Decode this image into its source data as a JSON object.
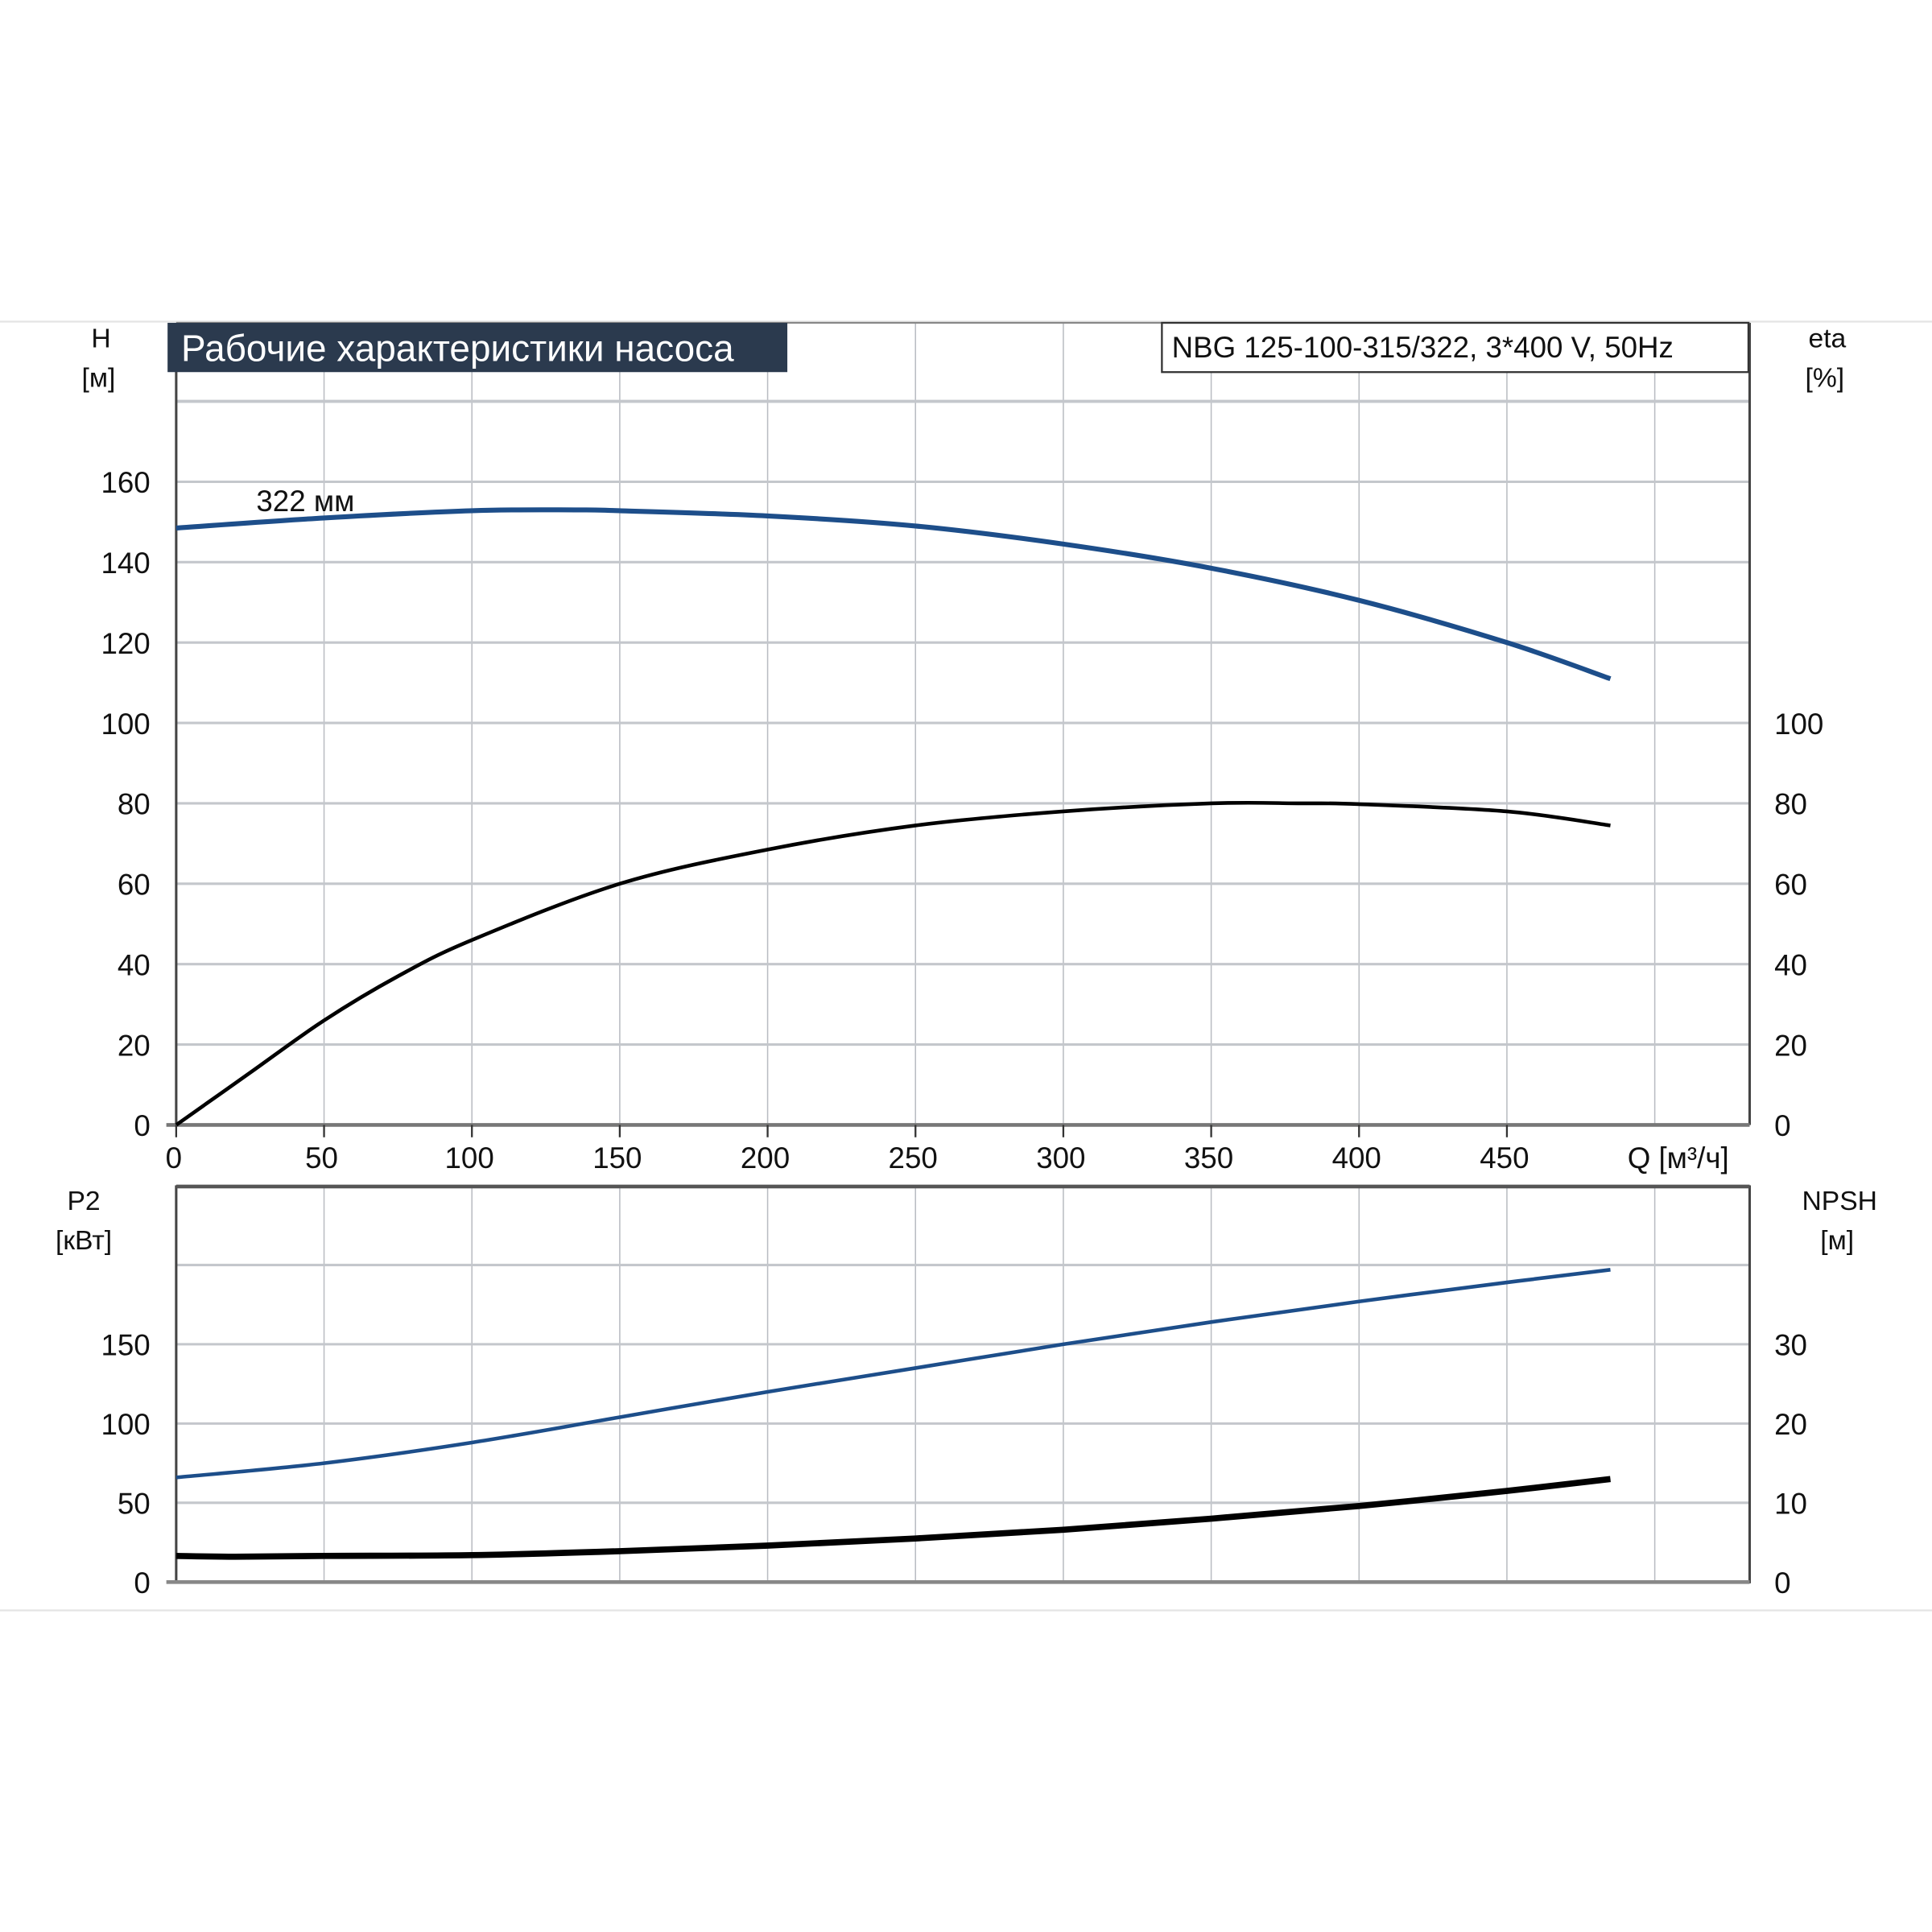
{
  "title": "Рабочие характеристики насоса",
  "model": "NBG 125-100-315/322, 3*400 V, 50Hz",
  "colors": {
    "title_bg": "#2b3a4e",
    "blue": "#1d4e8a",
    "black": "#000000",
    "grid": "#c4c7cc"
  },
  "chart_data": [
    {
      "type": "line",
      "xlabel": "Q [м³/ч]",
      "x_ticks": [
        "0",
        "50",
        "100",
        "150",
        "200",
        "250",
        "300",
        "350",
        "400",
        "450"
      ],
      "xlim": [
        0,
        532
      ],
      "ylabel_left": "H",
      "ylabel_left_unit": "[м]",
      "ylabel_right": "eta",
      "ylabel_right_unit": "[%]",
      "y_left_ticks": [
        "0",
        "20",
        "40",
        "60",
        "80",
        "100",
        "120",
        "140",
        "160"
      ],
      "y_right_ticks": [
        "0",
        "20",
        "40",
        "60",
        "80",
        "100"
      ],
      "ylim": [
        0,
        200
      ],
      "grid": true,
      "annotation": "322 мм",
      "series": [
        {
          "axis": "left",
          "color": "#1d4e8a",
          "x": [
            0,
            50,
            100,
            135,
            150,
            200,
            250,
            300,
            350,
            400,
            450,
            485
          ],
          "y": [
            148.5,
            151,
            152.8,
            153,
            152.8,
            151.5,
            149,
            144.5,
            138.5,
            130.5,
            120,
            111
          ]
        },
        {
          "axis": "right",
          "color": "#000000",
          "x": [
            0,
            25,
            50,
            75,
            100,
            150,
            200,
            250,
            300,
            350,
            380,
            400,
            450,
            485
          ],
          "y": [
            0,
            13,
            26,
            37,
            46,
            60,
            68.5,
            74.5,
            78,
            80,
            80,
            79.8,
            78,
            74.5
          ]
        }
      ]
    },
    {
      "type": "line",
      "xlim": [
        0,
        532
      ],
      "ylabel_left": "P2",
      "ylabel_left_unit": "[кВт]",
      "ylabel_right": "NPSH",
      "ylabel_right_unit": "[м]",
      "y_left_ticks": [
        "0",
        "50",
        "100",
        "150"
      ],
      "y_right_ticks": [
        "0",
        "10",
        "20",
        "30"
      ],
      "ylim_left": [
        0,
        200
      ],
      "ylim_right": [
        0,
        40
      ],
      "grid": true,
      "series": [
        {
          "axis": "left",
          "color": "#1d4e8a",
          "x": [
            0,
            50,
            100,
            150,
            200,
            250,
            300,
            350,
            400,
            450,
            485
          ],
          "y": [
            66,
            75,
            88,
            104,
            120,
            135,
            150,
            164,
            177,
            189,
            197
          ]
        },
        {
          "axis": "right",
          "color": "#000000",
          "x": [
            0,
            20,
            50,
            100,
            150,
            200,
            250,
            300,
            350,
            400,
            450,
            485
          ],
          "y": [
            3.3,
            3.2,
            3.3,
            3.4,
            3.9,
            4.6,
            5.5,
            6.6,
            8,
            9.6,
            11.5,
            13
          ]
        }
      ]
    }
  ]
}
